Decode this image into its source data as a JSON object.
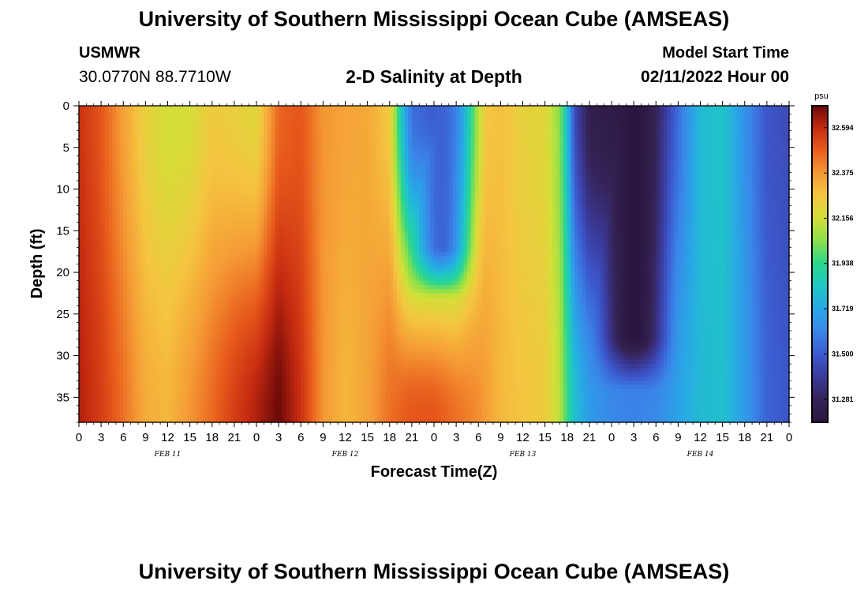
{
  "header": {
    "title": "University of Southern Mississippi Ocean Cube (AMSEAS)",
    "station": "USMWR",
    "coords": "30.0770N  88.7710W",
    "subtitle": "2-D Salinity at Depth",
    "model_start_label": "Model Start Time",
    "model_start_value": "02/11/2022 Hour 00"
  },
  "footer": {
    "title": "University of Southern Mississippi Ocean Cube (AMSEAS)"
  },
  "chart_data": {
    "type": "heatmap",
    "title": "2-D Salinity at Depth",
    "xlabel": "Forecast Time(Z)",
    "ylabel": "Depth (ft)",
    "x_range_hours": [
      0,
      96
    ],
    "x_tick_labels": [
      "0",
      "3",
      "6",
      "9",
      "12",
      "15",
      "18",
      "21",
      "0",
      "3",
      "6",
      "9",
      "12",
      "15",
      "18",
      "21",
      "0",
      "3",
      "6",
      "9",
      "12",
      "15",
      "18",
      "21",
      "0",
      "3",
      "6",
      "9",
      "12",
      "15",
      "18",
      "21",
      "0"
    ],
    "x_tick_step_hours": 3,
    "date_labels": [
      {
        "label": "FEB 11",
        "hour": 12
      },
      {
        "label": "FEB 12",
        "hour": 36
      },
      {
        "label": "FEB 13",
        "hour": 60
      },
      {
        "label": "FEB 14",
        "hour": 84
      }
    ],
    "y_range": [
      0,
      38
    ],
    "y_ticks": [
      0,
      5,
      10,
      15,
      20,
      25,
      30,
      35
    ],
    "colorbar": {
      "unit": "psu",
      "range": [
        31.17,
        32.7
      ],
      "ticks": [
        "32.594",
        "32.375",
        "32.156",
        "31.938",
        "31.719",
        "31.500",
        "31.281"
      ],
      "tick_values": [
        32.594,
        32.375,
        32.156,
        31.938,
        31.719,
        31.5,
        31.281
      ]
    },
    "colormap": [
      {
        "v": 31.17,
        "c": "#2a1740"
      },
      {
        "v": 31.281,
        "c": "#352356"
      },
      {
        "v": 31.39,
        "c": "#3b3a9a"
      },
      {
        "v": 31.5,
        "c": "#3c5bd0"
      },
      {
        "v": 31.61,
        "c": "#3a86e8"
      },
      {
        "v": 31.719,
        "c": "#28a8e6"
      },
      {
        "v": 31.83,
        "c": "#1fc8c4"
      },
      {
        "v": 31.938,
        "c": "#2bd68e"
      },
      {
        "v": 32.05,
        "c": "#8ee04a"
      },
      {
        "v": 32.156,
        "c": "#d2e038"
      },
      {
        "v": 32.265,
        "c": "#f5c540"
      },
      {
        "v": 32.375,
        "c": "#f59a35"
      },
      {
        "v": 32.485,
        "c": "#e85c1c"
      },
      {
        "v": 32.594,
        "c": "#c52a10"
      },
      {
        "v": 32.7,
        "c": "#6a0808"
      }
    ],
    "surface_profile": [
      {
        "h": 0,
        "v": 32.58
      },
      {
        "h": 3,
        "v": 32.5
      },
      {
        "h": 6,
        "v": 32.36
      },
      {
        "h": 9,
        "v": 32.22
      },
      {
        "h": 12,
        "v": 32.16
      },
      {
        "h": 15,
        "v": 32.17
      },
      {
        "h": 18,
        "v": 32.25
      },
      {
        "h": 21,
        "v": 32.23
      },
      {
        "h": 24,
        "v": 32.2
      },
      {
        "h": 27,
        "v": 32.47
      },
      {
        "h": 30,
        "v": 32.5
      },
      {
        "h": 33,
        "v": 32.38
      },
      {
        "h": 36,
        "v": 32.35
      },
      {
        "h": 39,
        "v": 32.34
      },
      {
        "h": 42,
        "v": 32.25
      },
      {
        "h": 43,
        "v": 32.0
      },
      {
        "h": 44,
        "v": 31.73
      },
      {
        "h": 45,
        "v": 31.55
      },
      {
        "h": 48,
        "v": 31.5
      },
      {
        "h": 51,
        "v": 31.6
      },
      {
        "h": 53,
        "v": 31.95
      },
      {
        "h": 55,
        "v": 32.26
      },
      {
        "h": 57,
        "v": 32.28
      },
      {
        "h": 60,
        "v": 32.22
      },
      {
        "h": 63,
        "v": 32.2
      },
      {
        "h": 65,
        "v": 32.05
      },
      {
        "h": 66,
        "v": 31.8
      },
      {
        "h": 67,
        "v": 31.45
      },
      {
        "h": 69,
        "v": 31.25
      },
      {
        "h": 72,
        "v": 31.21
      },
      {
        "h": 75,
        "v": 31.21
      },
      {
        "h": 78,
        "v": 31.28
      },
      {
        "h": 81,
        "v": 31.55
      },
      {
        "h": 84,
        "v": 31.78
      },
      {
        "h": 87,
        "v": 31.82
      },
      {
        "h": 90,
        "v": 31.65
      },
      {
        "h": 93,
        "v": 31.48
      },
      {
        "h": 96,
        "v": 31.45
      }
    ],
    "bottom_profile": [
      {
        "h": 0,
        "v": 32.62
      },
      {
        "h": 3,
        "v": 32.55
      },
      {
        "h": 6,
        "v": 32.45
      },
      {
        "h": 9,
        "v": 32.33
      },
      {
        "h": 12,
        "v": 32.3
      },
      {
        "h": 15,
        "v": 32.38
      },
      {
        "h": 18,
        "v": 32.46
      },
      {
        "h": 21,
        "v": 32.55
      },
      {
        "h": 24,
        "v": 32.62
      },
      {
        "h": 27,
        "v": 32.7
      },
      {
        "h": 30,
        "v": 32.58
      },
      {
        "h": 33,
        "v": 32.38
      },
      {
        "h": 36,
        "v": 32.3
      },
      {
        "h": 39,
        "v": 32.35
      },
      {
        "h": 42,
        "v": 32.45
      },
      {
        "h": 45,
        "v": 32.5
      },
      {
        "h": 48,
        "v": 32.5
      },
      {
        "h": 51,
        "v": 32.45
      },
      {
        "h": 54,
        "v": 32.4
      },
      {
        "h": 57,
        "v": 32.3
      },
      {
        "h": 60,
        "v": 32.26
      },
      {
        "h": 63,
        "v": 32.24
      },
      {
        "h": 65,
        "v": 32.12
      },
      {
        "h": 66,
        "v": 31.95
      },
      {
        "h": 67,
        "v": 31.8
      },
      {
        "h": 69,
        "v": 31.68
      },
      {
        "h": 72,
        "v": 31.62
      },
      {
        "h": 75,
        "v": 31.6
      },
      {
        "h": 78,
        "v": 31.62
      },
      {
        "h": 81,
        "v": 31.7
      },
      {
        "h": 84,
        "v": 31.78
      },
      {
        "h": 87,
        "v": 31.8
      },
      {
        "h": 90,
        "v": 31.68
      },
      {
        "h": 93,
        "v": 31.52
      },
      {
        "h": 96,
        "v": 31.48
      }
    ],
    "features": [
      {
        "name": "fresh-plume-feb12",
        "h_center": 49,
        "h_halfwidth": 5.0,
        "depth": 17,
        "v": 31.52
      },
      {
        "name": "fresh-core-feb13",
        "h_center": 75,
        "h_halfwidth": 6.5,
        "depth": 28,
        "v": 31.17
      }
    ]
  }
}
